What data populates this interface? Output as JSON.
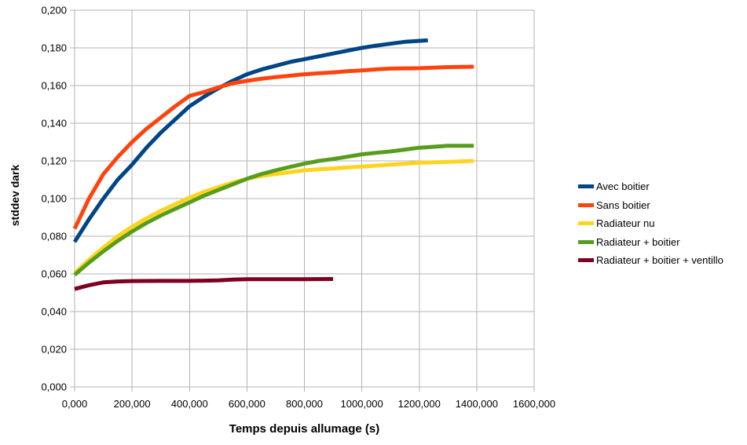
{
  "chart_data": {
    "type": "line",
    "xlabel": "Temps depuis allumage (s)",
    "ylabel": "stddev dark",
    "xlim": [
      0,
      1600
    ],
    "ylim": [
      0,
      0.2
    ],
    "grid": true,
    "legend_position": "right",
    "axis_color": "#b3b3b3",
    "text_color": "#000000",
    "background_color": "#ffffff",
    "x_tick_values": [
      0,
      200,
      400,
      600,
      800,
      1000,
      1200,
      1400,
      1600
    ],
    "x_tick_labels": [
      "0,000",
      "200,000",
      "400,000",
      "600,000",
      "800,000",
      "1000,000",
      "1200,000",
      "1400,000",
      "1600,000"
    ],
    "y_tick_values": [
      0,
      0.02,
      0.04,
      0.06,
      0.08,
      0.1,
      0.12,
      0.14,
      0.16,
      0.18,
      0.2
    ],
    "y_tick_labels": [
      "0,000",
      "0,020",
      "0,040",
      "0,060",
      "0,080",
      "0,100",
      "0,120",
      "0,140",
      "0,160",
      "0,180",
      "0,200"
    ],
    "series": [
      {
        "name": "Avec boitier",
        "color": "#004586",
        "points": [
          [
            0,
            0.077
          ],
          [
            50,
            0.089
          ],
          [
            100,
            0.1
          ],
          [
            150,
            0.11
          ],
          [
            200,
            0.118
          ],
          [
            250,
            0.127
          ],
          [
            300,
            0.135
          ],
          [
            350,
            0.142
          ],
          [
            400,
            0.149
          ],
          [
            450,
            0.154
          ],
          [
            500,
            0.1585
          ],
          [
            550,
            0.1625
          ],
          [
            600,
            0.166
          ],
          [
            650,
            0.1685
          ],
          [
            700,
            0.1705
          ],
          [
            750,
            0.1725
          ],
          [
            800,
            0.174
          ],
          [
            850,
            0.1755
          ],
          [
            900,
            0.177
          ],
          [
            950,
            0.1785
          ],
          [
            1000,
            0.18
          ],
          [
            1050,
            0.1812
          ],
          [
            1100,
            0.1822
          ],
          [
            1150,
            0.1832
          ],
          [
            1230,
            0.184
          ]
        ]
      },
      {
        "name": "Sans boitier",
        "color": "#ff420e",
        "points": [
          [
            0,
            0.084
          ],
          [
            50,
            0.1
          ],
          [
            100,
            0.113
          ],
          [
            150,
            0.122
          ],
          [
            200,
            0.13
          ],
          [
            250,
            0.137
          ],
          [
            300,
            0.143
          ],
          [
            350,
            0.149
          ],
          [
            400,
            0.1545
          ],
          [
            450,
            0.1565
          ],
          [
            500,
            0.159
          ],
          [
            550,
            0.1612
          ],
          [
            600,
            0.1625
          ],
          [
            650,
            0.1636
          ],
          [
            700,
            0.1645
          ],
          [
            750,
            0.1652
          ],
          [
            800,
            0.166
          ],
          [
            850,
            0.1665
          ],
          [
            900,
            0.167
          ],
          [
            950,
            0.1676
          ],
          [
            1000,
            0.168
          ],
          [
            1050,
            0.1686
          ],
          [
            1100,
            0.169
          ],
          [
            1200,
            0.1692
          ],
          [
            1300,
            0.1698
          ],
          [
            1390,
            0.17
          ]
        ]
      },
      {
        "name": "Radiateur nu",
        "color": "#ffd320",
        "points": [
          [
            0,
            0.0605
          ],
          [
            50,
            0.0675
          ],
          [
            100,
            0.074
          ],
          [
            150,
            0.08
          ],
          [
            200,
            0.085
          ],
          [
            250,
            0.0895
          ],
          [
            300,
            0.0935
          ],
          [
            350,
            0.097
          ],
          [
            400,
            0.1005
          ],
          [
            450,
            0.1035
          ],
          [
            500,
            0.106
          ],
          [
            550,
            0.1085
          ],
          [
            600,
            0.1105
          ],
          [
            650,
            0.112
          ],
          [
            700,
            0.113
          ],
          [
            750,
            0.114
          ],
          [
            800,
            0.115
          ],
          [
            850,
            0.1155
          ],
          [
            900,
            0.116
          ],
          [
            950,
            0.1165
          ],
          [
            1000,
            0.117
          ],
          [
            1100,
            0.118
          ],
          [
            1200,
            0.119
          ],
          [
            1300,
            0.1195
          ],
          [
            1390,
            0.12
          ]
        ]
      },
      {
        "name": "Radiateur + boitier",
        "color": "#579d1c",
        "points": [
          [
            0,
            0.0595
          ],
          [
            50,
            0.066
          ],
          [
            100,
            0.072
          ],
          [
            150,
            0.0775
          ],
          [
            200,
            0.0825
          ],
          [
            250,
            0.087
          ],
          [
            300,
            0.091
          ],
          [
            350,
            0.0945
          ],
          [
            400,
            0.098
          ],
          [
            450,
            0.1015
          ],
          [
            500,
            0.1045
          ],
          [
            550,
            0.1075
          ],
          [
            600,
            0.1105
          ],
          [
            650,
            0.113
          ],
          [
            700,
            0.115
          ],
          [
            750,
            0.1168
          ],
          [
            800,
            0.1185
          ],
          [
            850,
            0.12
          ],
          [
            900,
            0.121
          ],
          [
            950,
            0.1222
          ],
          [
            1000,
            0.1235
          ],
          [
            1050,
            0.1243
          ],
          [
            1100,
            0.125
          ],
          [
            1150,
            0.126
          ],
          [
            1200,
            0.127
          ],
          [
            1300,
            0.128
          ],
          [
            1390,
            0.128
          ]
        ]
      },
      {
        "name": "Radiateur + boitier + ventillo",
        "color": "#7e0021",
        "points": [
          [
            0,
            0.052
          ],
          [
            50,
            0.054
          ],
          [
            100,
            0.0555
          ],
          [
            150,
            0.056
          ],
          [
            200,
            0.0562
          ],
          [
            300,
            0.0563
          ],
          [
            400,
            0.0563
          ],
          [
            450,
            0.0564
          ],
          [
            500,
            0.0566
          ],
          [
            550,
            0.057
          ],
          [
            600,
            0.0572
          ],
          [
            700,
            0.0572
          ],
          [
            800,
            0.0572
          ],
          [
            900,
            0.0573
          ]
        ]
      }
    ]
  }
}
